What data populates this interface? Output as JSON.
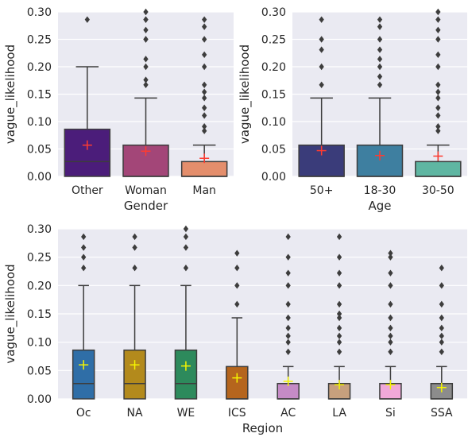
{
  "chart_data": [
    {
      "type": "box",
      "xlabel": "Gender",
      "ylabel": "vague_likelihood",
      "ylim": [
        0,
        0.3
      ],
      "yticks": [
        "0.00",
        "0.05",
        "0.10",
        "0.15",
        "0.20",
        "0.25",
        "0.30"
      ],
      "mean_marker_color": "#ff3b30",
      "categories": [
        "Other",
        "Woman",
        "Man"
      ],
      "colors": [
        "#4b1d7a",
        "#a34678",
        "#e48e6c"
      ],
      "boxes": [
        {
          "q1": 0.0,
          "median": 0.027,
          "q3": 0.086,
          "whisker_low": 0.0,
          "whisker_high": 0.2,
          "mean": 0.057,
          "outliers": [
            0.286
          ]
        },
        {
          "q1": 0.0,
          "median": 0.0,
          "q3": 0.057,
          "whisker_low": 0.0,
          "whisker_high": 0.143,
          "mean": 0.046,
          "outliers": [
            0.167,
            0.176,
            0.2,
            0.214,
            0.25,
            0.25,
            0.267,
            0.286,
            0.286,
            0.3
          ]
        },
        {
          "q1": 0.0,
          "median": 0.0,
          "q3": 0.027,
          "whisker_low": 0.0,
          "whisker_high": 0.057,
          "mean": 0.033,
          "outliers": [
            0.083,
            0.091,
            0.111,
            0.125,
            0.143,
            0.154,
            0.167,
            0.2,
            0.222,
            0.25,
            0.273,
            0.286
          ]
        }
      ]
    },
    {
      "type": "box",
      "xlabel": "Age",
      "ylabel": "vague_likelihood",
      "ylim": [
        0,
        0.3
      ],
      "yticks": [
        "0.00",
        "0.05",
        "0.10",
        "0.15",
        "0.20",
        "0.25",
        "0.30"
      ],
      "mean_marker_color": "#ff3b30",
      "categories": [
        "50+",
        "18-30",
        "30-50"
      ],
      "colors": [
        "#3a3c7a",
        "#3e7fa0",
        "#5fb6a2"
      ],
      "boxes": [
        {
          "q1": 0.0,
          "median": 0.0,
          "q3": 0.057,
          "whisker_low": 0.0,
          "whisker_high": 0.143,
          "mean": 0.047,
          "outliers": [
            0.167,
            0.2,
            0.231,
            0.25,
            0.286
          ]
        },
        {
          "q1": 0.0,
          "median": 0.0,
          "q3": 0.057,
          "whisker_low": 0.0,
          "whisker_high": 0.143,
          "mean": 0.038,
          "outliers": [
            0.167,
            0.182,
            0.2,
            0.214,
            0.231,
            0.25,
            0.273,
            0.286
          ]
        },
        {
          "q1": 0.0,
          "median": 0.0,
          "q3": 0.027,
          "whisker_low": 0.0,
          "whisker_high": 0.057,
          "mean": 0.037,
          "outliers": [
            0.083,
            0.091,
            0.111,
            0.125,
            0.143,
            0.154,
            0.167,
            0.2,
            0.222,
            0.25,
            0.267,
            0.286,
            0.3
          ]
        }
      ]
    },
    {
      "type": "box",
      "xlabel": "Region",
      "ylabel": "vague_likelihood",
      "ylim": [
        0,
        0.3
      ],
      "yticks": [
        "0.00",
        "0.05",
        "0.10",
        "0.15",
        "0.20",
        "0.25",
        "0.30"
      ],
      "mean_marker_color": "#f5f500",
      "categories": [
        "Oc",
        "NA",
        "WE",
        "ICS",
        "AC",
        "LA",
        "Si",
        "SSA"
      ],
      "colors": [
        "#2f6ea7",
        "#b38a1c",
        "#2d8a5c",
        "#b5651d",
        "#c58bc6",
        "#c7a07d",
        "#f0a8d8",
        "#8c8c8c"
      ],
      "boxes": [
        {
          "q1": 0.0,
          "median": 0.027,
          "q3": 0.086,
          "whisker_low": 0.0,
          "whisker_high": 0.2,
          "mean": 0.06,
          "outliers": [
            0.231,
            0.25,
            0.267,
            0.286
          ]
        },
        {
          "q1": 0.0,
          "median": 0.027,
          "q3": 0.086,
          "whisker_low": 0.0,
          "whisker_high": 0.2,
          "mean": 0.06,
          "outliers": [
            0.231,
            0.267,
            0.286
          ]
        },
        {
          "q1": 0.0,
          "median": 0.027,
          "q3": 0.086,
          "whisker_low": 0.0,
          "whisker_high": 0.2,
          "mean": 0.058,
          "outliers": [
            0.231,
            0.267,
            0.286,
            0.3
          ]
        },
        {
          "q1": 0.0,
          "median": 0.0,
          "q3": 0.057,
          "whisker_low": 0.0,
          "whisker_high": 0.143,
          "mean": 0.037,
          "outliers": [
            0.167,
            0.2,
            0.231,
            0.257
          ]
        },
        {
          "q1": 0.0,
          "median": 0.0,
          "q3": 0.027,
          "whisker_low": 0.0,
          "whisker_high": 0.057,
          "mean": 0.031,
          "outliers": [
            0.083,
            0.1,
            0.111,
            0.125,
            0.143,
            0.167,
            0.2,
            0.222,
            0.25,
            0.286
          ]
        },
        {
          "q1": 0.0,
          "median": 0.0,
          "q3": 0.027,
          "whisker_low": 0.0,
          "whisker_high": 0.057,
          "mean": 0.025,
          "outliers": [
            0.083,
            0.1,
            0.111,
            0.125,
            0.143,
            0.15,
            0.167,
            0.2,
            0.222,
            0.25,
            0.286
          ]
        },
        {
          "q1": 0.0,
          "median": 0.0,
          "q3": 0.027,
          "whisker_low": 0.0,
          "whisker_high": 0.057,
          "mean": 0.025,
          "outliers": [
            0.083,
            0.1,
            0.111,
            0.125,
            0.143,
            0.167,
            0.2,
            0.222,
            0.25,
            0.257
          ]
        },
        {
          "q1": 0.0,
          "median": 0.0,
          "q3": 0.027,
          "whisker_low": 0.0,
          "whisker_high": 0.057,
          "mean": 0.02,
          "outliers": [
            0.083,
            0.1,
            0.111,
            0.125,
            0.143,
            0.167,
            0.2,
            0.231
          ]
        }
      ]
    }
  ]
}
